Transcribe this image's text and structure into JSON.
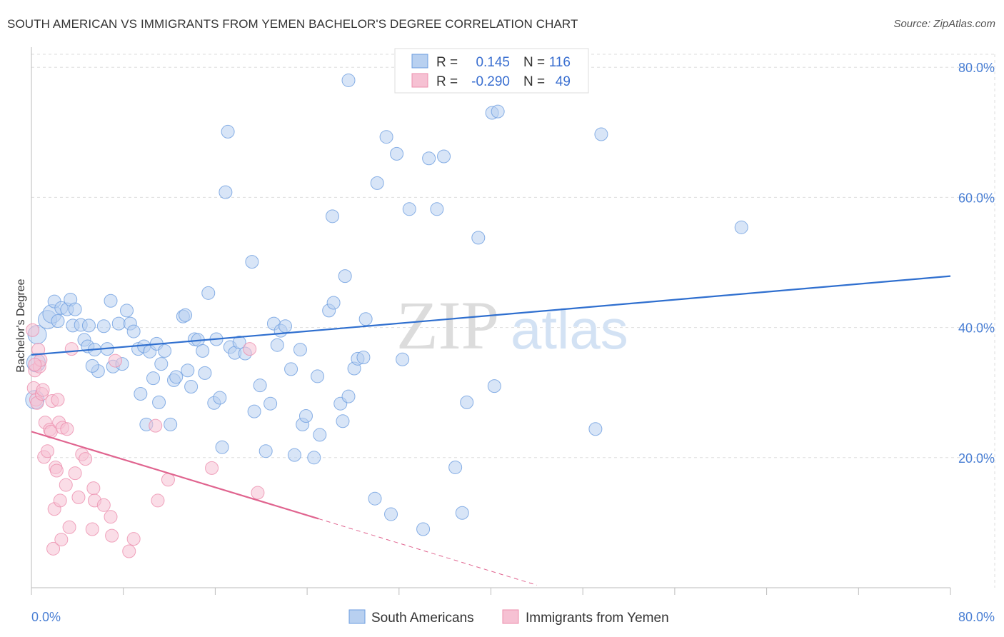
{
  "title": "SOUTH AMERICAN VS IMMIGRANTS FROM YEMEN BACHELOR'S DEGREE CORRELATION CHART",
  "source": "Source: ZipAtlas.com",
  "watermark": {
    "zip": "ZIP",
    "atlas": "atlas"
  },
  "colors": {
    "blue": "#6d9ee0",
    "blue_fill": "#b8d0f0",
    "blue_line": "#2f6fcf",
    "pink": "#ec8fae",
    "pink_fill": "#f6c1d3",
    "pink_line": "#e0648f",
    "grid": "#dddddd",
    "tick_text": "#4a7fd4"
  },
  "chart_data": {
    "type": "scatter",
    "ylabel": "Bachelor's Degree",
    "x_tick_labels": [
      "0.0%",
      "80.0%"
    ],
    "y_tick_labels": [
      "20.0%",
      "40.0%",
      "60.0%",
      "80.0%"
    ],
    "y_ticks": [
      20,
      40,
      60,
      80
    ],
    "xlim": [
      0,
      80
    ],
    "ylim": [
      0,
      82
    ],
    "grid": true,
    "legend_position": "top-center",
    "legend": [
      {
        "r_label": "R =",
        "r_value": "0.145",
        "n_label": "N =",
        "n_value": "116"
      },
      {
        "r_label": "R =",
        "r_value": "-0.290",
        "n_label": "N =",
        "n_value": "49"
      }
    ],
    "bottom_legend": [
      "South Americans",
      "Immigrants from Yemen"
    ],
    "series": [
      {
        "name": "South Americans",
        "color": "#6d9ee0",
        "trend": {
          "x": [
            0,
            80
          ],
          "y": [
            35.8,
            47.9
          ]
        },
        "points": [
          [
            0.3,
            28.9
          ],
          [
            0.4,
            34.6
          ],
          [
            0.5,
            38.9
          ],
          [
            1.4,
            41.2
          ],
          [
            1.8,
            42.1
          ],
          [
            2.0,
            44.0
          ],
          [
            2.3,
            41.0
          ],
          [
            2.6,
            43.0
          ],
          [
            3.1,
            42.8
          ],
          [
            3.4,
            44.3
          ],
          [
            3.6,
            40.3
          ],
          [
            3.8,
            42.8
          ],
          [
            4.3,
            40.4
          ],
          [
            4.6,
            38.1
          ],
          [
            4.9,
            37.1
          ],
          [
            5.0,
            40.3
          ],
          [
            5.5,
            36.6
          ],
          [
            5.8,
            33.3
          ],
          [
            5.3,
            34.1
          ],
          [
            6.3,
            40.2
          ],
          [
            6.6,
            36.7
          ],
          [
            6.9,
            44.1
          ],
          [
            7.1,
            34.0
          ],
          [
            7.6,
            40.6
          ],
          [
            7.9,
            34.4
          ],
          [
            8.3,
            42.6
          ],
          [
            8.6,
            40.6
          ],
          [
            8.9,
            39.4
          ],
          [
            9.3,
            36.7
          ],
          [
            9.5,
            29.8
          ],
          [
            9.8,
            37.1
          ],
          [
            10.0,
            25.1
          ],
          [
            10.3,
            36.3
          ],
          [
            10.6,
            32.2
          ],
          [
            10.9,
            37.5
          ],
          [
            11.1,
            28.5
          ],
          [
            11.3,
            34.4
          ],
          [
            11.6,
            36.4
          ],
          [
            12.1,
            25.1
          ],
          [
            12.4,
            31.9
          ],
          [
            12.6,
            32.4
          ],
          [
            13.2,
            41.7
          ],
          [
            13.4,
            41.9
          ],
          [
            13.6,
            33.4
          ],
          [
            13.9,
            30.9
          ],
          [
            14.2,
            38.2
          ],
          [
            14.5,
            38.1
          ],
          [
            14.9,
            36.4
          ],
          [
            15.1,
            33.0
          ],
          [
            15.4,
            45.3
          ],
          [
            15.9,
            28.4
          ],
          [
            16.1,
            38.2
          ],
          [
            16.4,
            29.2
          ],
          [
            16.6,
            21.6
          ],
          [
            17.1,
            70.1
          ],
          [
            17.3,
            37.0
          ],
          [
            17.7,
            36.1
          ],
          [
            18.1,
            37.7
          ],
          [
            18.6,
            36.0
          ],
          [
            19.2,
            50.1
          ],
          [
            19.4,
            27.1
          ],
          [
            19.9,
            31.1
          ],
          [
            20.4,
            21.0
          ],
          [
            20.8,
            28.3
          ],
          [
            21.1,
            40.6
          ],
          [
            21.4,
            37.3
          ],
          [
            21.7,
            39.5
          ],
          [
            22.1,
            40.2
          ],
          [
            22.6,
            33.6
          ],
          [
            22.9,
            20.4
          ],
          [
            23.4,
            36.6
          ],
          [
            23.6,
            25.1
          ],
          [
            23.9,
            26.4
          ],
          [
            24.6,
            20.0
          ],
          [
            24.9,
            32.5
          ],
          [
            25.1,
            23.5
          ],
          [
            25.9,
            42.6
          ],
          [
            26.3,
            43.8
          ],
          [
            26.9,
            28.3
          ],
          [
            27.1,
            25.6
          ],
          [
            27.3,
            47.9
          ],
          [
            27.6,
            29.4
          ],
          [
            28.1,
            33.7
          ],
          [
            28.4,
            35.2
          ],
          [
            28.9,
            35.4
          ],
          [
            29.1,
            41.3
          ],
          [
            29.9,
            13.7
          ],
          [
            30.1,
            62.2
          ],
          [
            30.9,
            69.3
          ],
          [
            31.3,
            11.3
          ],
          [
            31.8,
            66.7
          ],
          [
            32.3,
            35.1
          ],
          [
            32.9,
            58.2
          ],
          [
            34.1,
            9.0
          ],
          [
            34.6,
            66.0
          ],
          [
            35.3,
            58.2
          ],
          [
            35.9,
            66.3
          ],
          [
            36.9,
            18.5
          ],
          [
            37.5,
            11.5
          ],
          [
            37.9,
            28.5
          ],
          [
            38.9,
            53.8
          ],
          [
            40.1,
            73.0
          ],
          [
            40.6,
            73.2
          ],
          [
            40.3,
            31.0
          ],
          [
            49.1,
            24.4
          ],
          [
            49.6,
            69.7
          ],
          [
            61.8,
            55.4
          ],
          [
            27.6,
            78.0
          ],
          [
            16.9,
            60.8
          ],
          [
            26.2,
            57.1
          ]
        ]
      },
      {
        "name": "Immigrants from Yemen",
        "color": "#ec8fae",
        "trend": {
          "x": [
            0,
            25
          ],
          "y": [
            24.0,
            10.6
          ]
        },
        "trend_dashed": {
          "x": [
            25,
            44
          ],
          "y": [
            10.6,
            0.4
          ]
        },
        "points": [
          [
            0.1,
            39.6
          ],
          [
            0.2,
            30.7
          ],
          [
            0.3,
            33.4
          ],
          [
            0.4,
            28.9
          ],
          [
            0.5,
            28.4
          ],
          [
            0.6,
            36.6
          ],
          [
            0.7,
            34.0
          ],
          [
            0.8,
            35.0
          ],
          [
            0.9,
            29.8
          ],
          [
            1.0,
            30.4
          ],
          [
            1.1,
            20.1
          ],
          [
            1.2,
            25.4
          ],
          [
            1.4,
            21.0
          ],
          [
            1.6,
            24.3
          ],
          [
            1.7,
            24.0
          ],
          [
            1.8,
            28.7
          ],
          [
            1.9,
            6.0
          ],
          [
            2.0,
            12.1
          ],
          [
            2.1,
            18.5
          ],
          [
            2.2,
            18.0
          ],
          [
            2.3,
            28.9
          ],
          [
            2.4,
            25.4
          ],
          [
            2.5,
            13.4
          ],
          [
            2.6,
            7.4
          ],
          [
            2.7,
            24.6
          ],
          [
            3.0,
            15.8
          ],
          [
            3.1,
            24.4
          ],
          [
            3.3,
            9.3
          ],
          [
            3.5,
            36.7
          ],
          [
            3.8,
            17.6
          ],
          [
            4.1,
            13.9
          ],
          [
            4.4,
            20.5
          ],
          [
            4.7,
            19.8
          ],
          [
            5.3,
            9.0
          ],
          [
            5.4,
            15.3
          ],
          [
            5.5,
            13.4
          ],
          [
            6.3,
            12.7
          ],
          [
            6.9,
            10.9
          ],
          [
            7.0,
            8.0
          ],
          [
            7.3,
            34.9
          ],
          [
            8.5,
            5.6
          ],
          [
            8.9,
            7.5
          ],
          [
            10.8,
            24.9
          ],
          [
            11.0,
            13.4
          ],
          [
            11.9,
            16.6
          ],
          [
            15.7,
            18.4
          ],
          [
            19.7,
            14.6
          ],
          [
            19.0,
            36.7
          ],
          [
            0.3,
            34.3
          ]
        ]
      }
    ]
  }
}
